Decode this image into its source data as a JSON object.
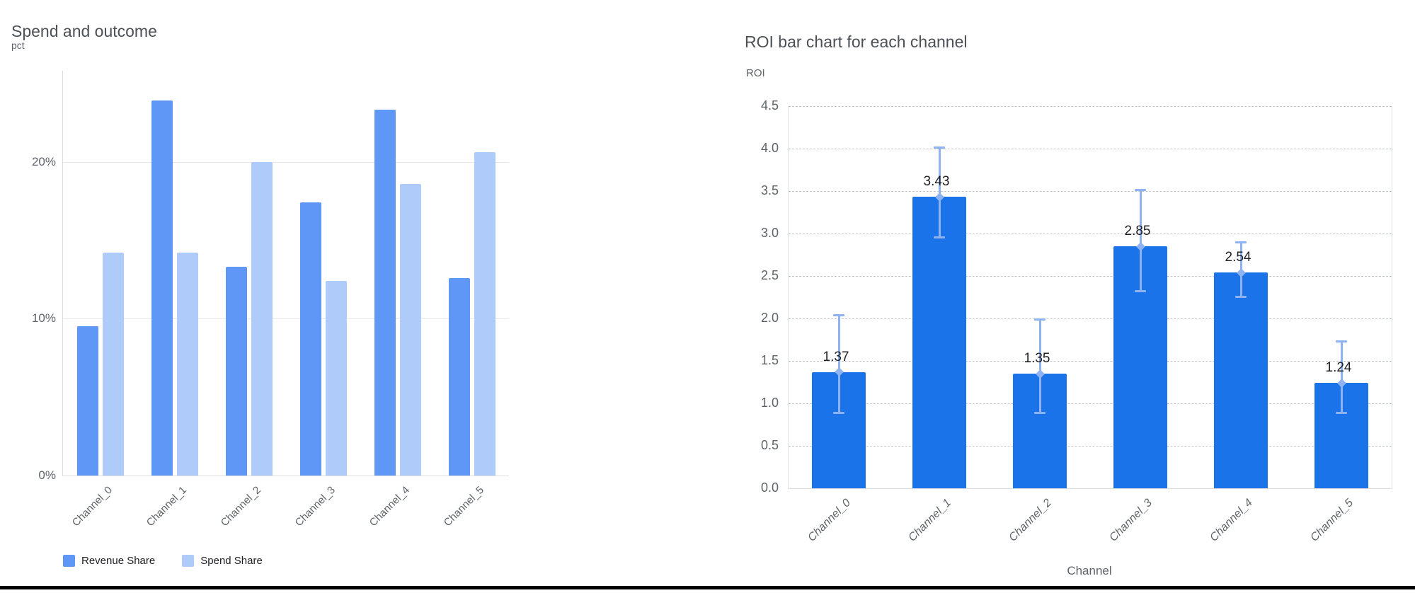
{
  "left_chart": {
    "y_ticks": [
      {
        "label": "0%",
        "value": 0
      },
      {
        "label": "10%",
        "value": 10
      },
      {
        "label": "20%",
        "value": 20
      }
    ]
  },
  "right_chart": {
    "y_tick_min": 0,
    "y_tick_max": 4.5,
    "y_tick_step": 0.5
  },
  "chart_data": [
    {
      "type": "bar",
      "title": "Spend and outcome",
      "ylabel": "pct",
      "xlabel": "",
      "categories": [
        "Channel_0",
        "Channel_1",
        "Channel_2",
        "Channel_3",
        "Channel_4",
        "Channel_5"
      ],
      "series": [
        {
          "name": "Revenue Share",
          "color": "#5e97f6",
          "values": [
            9.5,
            23.9,
            13.3,
            17.4,
            23.3,
            12.6
          ]
        },
        {
          "name": "Spend Share",
          "color": "#aecbfa",
          "values": [
            14.2,
            14.2,
            20.0,
            12.4,
            18.6,
            20.6
          ]
        }
      ],
      "y_tick_labels": [
        "0%",
        "10%",
        "20%"
      ],
      "ylim": [
        0,
        25.8
      ],
      "grid": "horizontal-solid",
      "legend_position": "bottom-left"
    },
    {
      "type": "bar",
      "title": "ROI bar chart for each channel",
      "ylabel": "ROI",
      "xlabel": "Channel",
      "categories": [
        "Channel_0",
        "Channel_1",
        "Channel_2",
        "Channel_3",
        "Channel_4",
        "Channel_5"
      ],
      "values": [
        1.37,
        3.43,
        1.35,
        2.85,
        2.54,
        1.24
      ],
      "bar_labels": [
        "1.37",
        "3.43",
        "1.35",
        "2.85",
        "2.54",
        "1.24"
      ],
      "error_low": [
        0.88,
        2.95,
        0.88,
        2.32,
        2.25,
        0.88
      ],
      "error_high": [
        2.04,
        4.02,
        1.99,
        3.52,
        2.9,
        1.73
      ],
      "bar_color": "#1a73e8",
      "error_color": "#8fb2f3",
      "ylim": [
        0,
        4.5
      ],
      "y_tick_labels": [
        "0.0",
        "0.5",
        "1.0",
        "1.5",
        "2.0",
        "2.5",
        "3.0",
        "3.5",
        "4.0",
        "4.5"
      ],
      "grid": "horizontal-dashed",
      "legend_position": "none"
    }
  ]
}
